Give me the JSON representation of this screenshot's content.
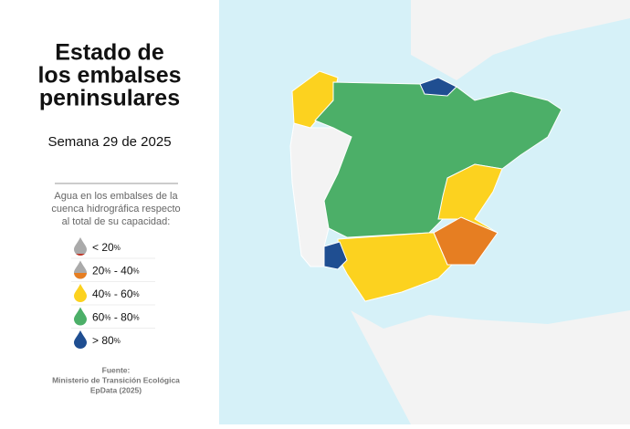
{
  "header": {
    "title_lines": [
      "Estado de",
      "los embalses",
      "peninsulares"
    ],
    "subtitle": "Semana 29 de 2025"
  },
  "legend": {
    "description_lines": [
      "Agua en los embalses de la",
      "cuenca hidrográfica respecto",
      "al total de su capacidad:"
    ],
    "items": [
      {
        "parts": [
          "< 20",
          "%"
        ],
        "color": "#c0392b"
      },
      {
        "parts": [
          "20",
          "%",
          " - 40",
          "%"
        ],
        "color": "#e67e22"
      },
      {
        "parts": [
          "40",
          "%",
          " - 60",
          "%"
        ],
        "color": "#fcd21f"
      },
      {
        "parts": [
          "60",
          "%",
          " - 80",
          "%"
        ],
        "color": "#4caf68"
      },
      {
        "parts": [
          "> 80",
          "%"
        ],
        "color": "#1f4e91"
      }
    ]
  },
  "source": {
    "lines": [
      "Fuente:",
      "Ministerio de Transición Ecológica",
      "EpData (2025)"
    ]
  }
}
